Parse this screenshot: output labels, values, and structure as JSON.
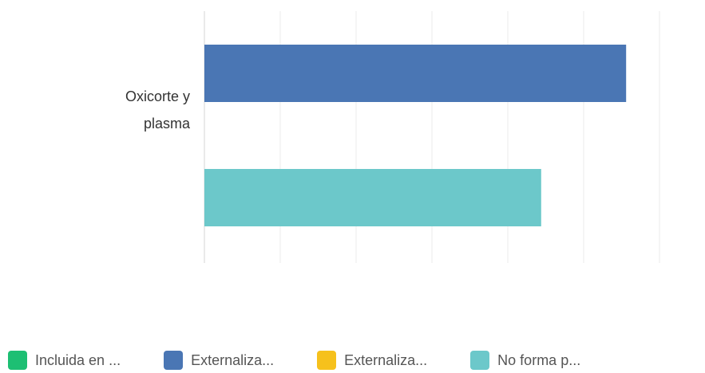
{
  "chart_data": {
    "type": "bar",
    "orientation": "horizontal",
    "categories": [
      "Oxicorte y plasma"
    ],
    "category_label_lines": [
      "Oxicorte y",
      "plasma"
    ],
    "series": [
      {
        "name": "Incluida en ...",
        "color": "#1dbf73",
        "values": [
          0
        ]
      },
      {
        "name": "Externaliza...",
        "color": "#4a76b4",
        "values": [
          55.6
        ]
      },
      {
        "name": "Externaliza...",
        "color": "#f6c11c",
        "values": [
          0
        ]
      },
      {
        "name": "No forma p...",
        "color": "#6cc8ca",
        "values": [
          44.4
        ]
      }
    ],
    "xlim": [
      0,
      100
    ],
    "grid": true,
    "legend_position": "bottom"
  }
}
